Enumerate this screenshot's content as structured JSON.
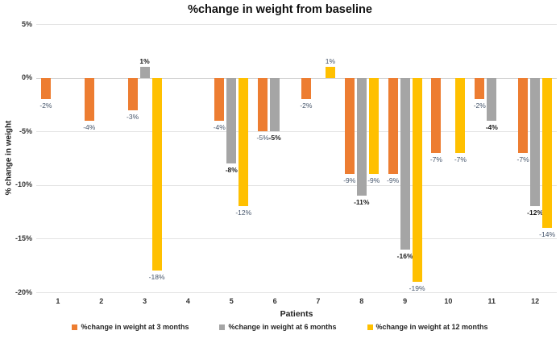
{
  "chart_data": {
    "type": "bar",
    "title": "%change in weight from baseline",
    "xlabel": "Patients",
    "ylabel": "% change in weight",
    "categories": [
      "1",
      "2",
      "3",
      "4",
      "5",
      "6",
      "7",
      "8",
      "9",
      "10",
      "11",
      "12"
    ],
    "series": [
      {
        "name": "%change in weight at 3 months",
        "color": "#ED7D31",
        "label_color": "#44546A",
        "label_bold": false,
        "values": [
          -2,
          -4,
          -3,
          null,
          -4,
          -5,
          -2,
          -9,
          -9,
          -7,
          -2,
          -7
        ]
      },
      {
        "name": "%change in weight at 6 months",
        "color": "#A5A5A5",
        "label_color": "#1A1A1A",
        "label_bold": true,
        "values": [
          null,
          null,
          1,
          null,
          -8,
          -5,
          null,
          -11,
          -16,
          null,
          -4,
          -12
        ]
      },
      {
        "name": "%change in weight at 12 months",
        "color": "#FFC000",
        "label_color": "#44546A",
        "label_bold": false,
        "values": [
          null,
          null,
          -18,
          null,
          -12,
          null,
          1,
          -9,
          -19,
          -7,
          null,
          -14
        ]
      }
    ],
    "ylim": [
      -20,
      5
    ],
    "yticks": [
      5,
      0,
      -5,
      -10,
      -15,
      -20
    ],
    "ytick_labels": [
      "5%",
      "0%",
      "-5%",
      "-10%",
      "-15%",
      "-20%"
    ],
    "label_suffix": "%",
    "grid": true,
    "legend_position": "bottom"
  },
  "colors": {
    "grid": "#E3E3E3",
    "zero_line": "#D5D5D5",
    "background": "#FFFFFF"
  }
}
